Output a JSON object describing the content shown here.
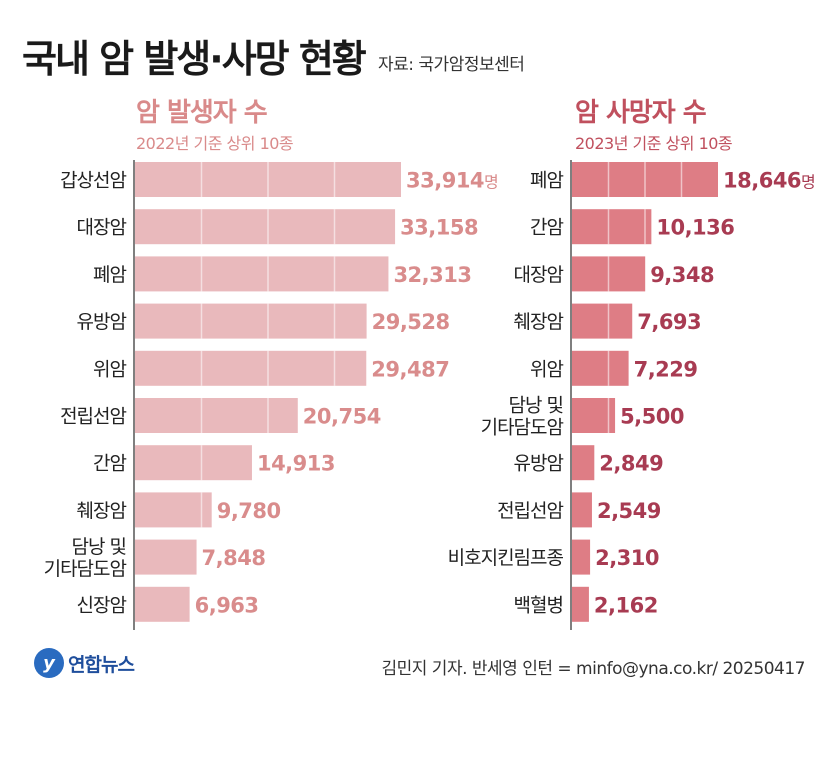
{
  "title": "국내 암 발생·사망 현황",
  "source": "자료: 국가암정보센터",
  "logo_text": "연합뉴스",
  "credit": "김민지 기자. 반세영 인턴 = minfo@yna.co.kr/ 20250417",
  "colors": {
    "left_bar": "#e9b9bc",
    "right_bar": "#de7d85",
    "axis": "#555555"
  },
  "chart_data": [
    {
      "type": "bar",
      "orientation": "horizontal",
      "title": "암 발생자 수",
      "subtitle": "2022년 기준 상위 10종",
      "unit": "명",
      "categories": [
        [
          "갑상선암"
        ],
        [
          "대장암"
        ],
        [
          "폐암"
        ],
        [
          "유방암"
        ],
        [
          "위암"
        ],
        [
          "전립선암"
        ],
        [
          "간암"
        ],
        [
          "췌장암"
        ],
        [
          "담낭 및",
          "기타담도암"
        ],
        [
          "신장암"
        ]
      ],
      "values": [
        33914,
        33158,
        32313,
        29528,
        29487,
        20754,
        14913,
        9780,
        7848,
        6963
      ],
      "value_labels": [
        "33,914",
        "33,158",
        "32,313",
        "29,528",
        "29,487",
        "20,754",
        "14,913",
        "9,780",
        "7,848",
        "6,963"
      ],
      "xlim": [
        0,
        33914
      ],
      "grid": true
    },
    {
      "type": "bar",
      "orientation": "horizontal",
      "title": "암 사망자 수",
      "subtitle": "2023년 기준 상위 10종",
      "unit": "명",
      "categories": [
        [
          "폐암"
        ],
        [
          "간암"
        ],
        [
          "대장암"
        ],
        [
          "췌장암"
        ],
        [
          "위암"
        ],
        [
          "담낭 및",
          "기타담도암"
        ],
        [
          "유방암"
        ],
        [
          "전립선암"
        ],
        [
          "비호지킨림프종"
        ],
        [
          "백혈병"
        ]
      ],
      "values": [
        18646,
        10136,
        9348,
        7693,
        7229,
        5500,
        2849,
        2549,
        2310,
        2162
      ],
      "value_labels": [
        "18,646",
        "10,136",
        "9,348",
        "7,693",
        "7,229",
        "5,500",
        "2,849",
        "2,549",
        "2,310",
        "2,162"
      ],
      "xlim": [
        0,
        18646
      ],
      "grid": true
    }
  ]
}
